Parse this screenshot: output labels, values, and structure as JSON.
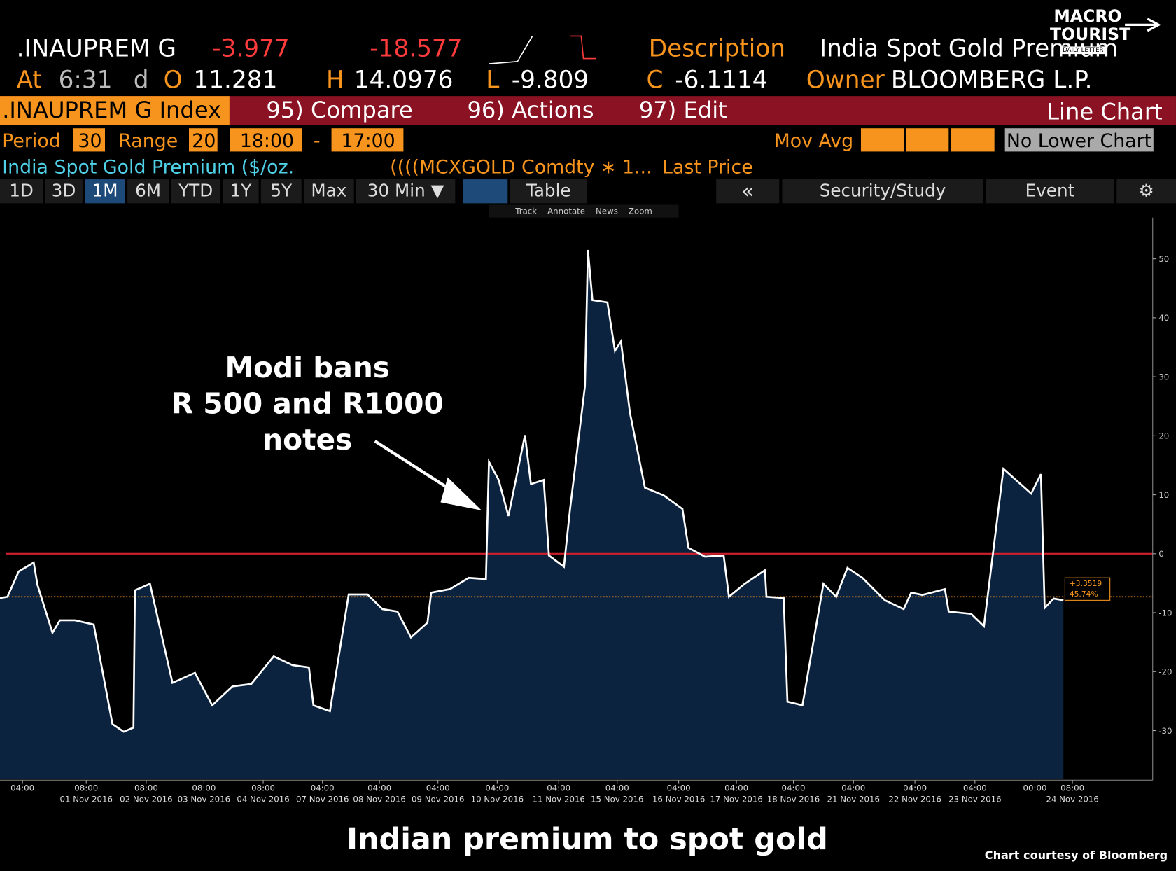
{
  "header": {
    "ticker": ".INAUPREM G",
    "change": "-3.977",
    "change_pct": "-18.577",
    "description_label": "Description",
    "description": "India Spot Gold Premium",
    "at_label": "At",
    "time": "6:31",
    "d_label": "d",
    "open_label": "O",
    "open": "11.281",
    "high_label": "H",
    "high": "14.0976",
    "low_label": "L",
    "low": "-9.809",
    "close_label": "C",
    "close": "-6.1114",
    "owner_label": "Owner",
    "owner": "BLOOMBERG L.P."
  },
  "logo": {
    "line1": "MACRO",
    "line2": "TOURIST",
    "line3": "DAILY LETTER"
  },
  "toolbar": {
    "security": ".INAUPREM G Index",
    "compare": "95) Compare",
    "actions": "96) Actions",
    "edit": "97) Edit",
    "view": "Line Chart"
  },
  "settings": {
    "period_label": "Period",
    "period": "30",
    "range_label": "Range",
    "range": "20",
    "start": "18:00",
    "dash": "-",
    "end": "17:00",
    "mov_avg": "Mov Avg",
    "lower_chart": "No Lower Chart"
  },
  "legend_row": {
    "series": "India Spot Gold Premium ($/oz.",
    "formula": "((((MCXGOLD Comdty ∗ 1...",
    "field": "Last Price"
  },
  "tabs": [
    "1D",
    "3D",
    "1M",
    "6M",
    "YTD",
    "1Y",
    "5Y",
    "Max",
    "30 Min ▼"
  ],
  "tab_table": "Table",
  "tab_back": "«",
  "tab_study": "Security/Study",
  "tab_event": "Event",
  "tools": [
    "Track",
    "Annotate",
    "News",
    "Zoom"
  ],
  "chart_data": {
    "type": "line",
    "color": "#ffffff",
    "fill": "#0c2340",
    "annotation": [
      "Modi bans",
      "R 500 and R1000",
      "notes"
    ],
    "x": [
      0,
      1,
      2.5,
      4.5,
      5,
      7,
      8,
      10,
      12.5,
      15,
      16.5,
      17.8,
      18,
      20,
      23,
      26,
      28.3,
      31,
      33.5,
      36.5,
      39,
      41.2,
      41.8,
      44,
      46.5,
      49,
      51,
      53,
      54.8,
      57,
      57.5,
      60,
      62.5,
      64.8,
      65.2,
      66.5,
      67.8,
      70,
      70.8,
      72.5,
      73.2,
      75.2,
      76,
      78,
      78.4,
      79,
      81,
      82,
      82.8,
      84,
      86,
      88.5,
      91,
      91.8,
      94,
      96.5,
      97.2,
      99.3,
      102,
      102.2,
      104.5,
      105,
      107,
      109.8,
      111.5,
      113,
      115,
      118,
      120.5,
      121.5,
      123,
      126,
      126.5,
      129.5,
      131.2,
      133.8,
      137.5,
      138.8,
      139.3,
      140.5,
      141.8
    ],
    "values": [
      -7.5,
      -7.3,
      -3,
      -1.5,
      -5.3,
      -13.4,
      -11.3,
      -11.3,
      -12,
      -28.9,
      -30.2,
      -29.5,
      -6.2,
      -5.1,
      -21.9,
      -20.2,
      -25.7,
      -22.5,
      -22.1,
      -17.4,
      -18.9,
      -19.3,
      -25.7,
      -26.7,
      -6.9,
      -6.9,
      -9.4,
      -9.8,
      -14.2,
      -11.7,
      -6.6,
      -6,
      -4.1,
      -4.3,
      15.6,
      12.5,
      6.4,
      20.1,
      11.8,
      12.5,
      -0.3,
      -2.2,
      7.4,
      28.4,
      51.5,
      43,
      42.6,
      34.4,
      36,
      23.9,
      11.2,
      9.9,
      7.6,
      1,
      -0.5,
      -0.3,
      -7.3,
      -5.1,
      -2.8,
      -7.3,
      -7.5,
      -25.1,
      -25.7,
      -5.1,
      -7.3,
      -2.4,
      -4.1,
      -7.9,
      -9.4,
      -6.6,
      -7,
      -6,
      -9.8,
      -10.2,
      -12.3,
      14.4,
      10.2,
      13.5,
      -9.2,
      -7.6,
      -7.9
    ],
    "xlim": [
      0,
      153.7
    ],
    "ylim": [
      -38.4,
      57
    ],
    "yticks": [
      50,
      40,
      30,
      20,
      10,
      0,
      -10,
      -20,
      -30
    ],
    "xticks": [
      {
        "value": 3,
        "label": "04:00"
      },
      {
        "value": 11.5,
        "label": "08:00"
      },
      {
        "value": 19.5,
        "label": "08:00"
      },
      {
        "value": 27.2,
        "label": "08:00"
      },
      {
        "value": 35.1,
        "label": "08:00"
      },
      {
        "value": 43,
        "label": "04:00"
      },
      {
        "value": 50.6,
        "label": "04:00"
      },
      {
        "value": 58.4,
        "label": "04:00"
      },
      {
        "value": 66.3,
        "label": "04:00"
      },
      {
        "value": 74.5,
        "label": "04:00"
      },
      {
        "value": 82.3,
        "label": "04:00"
      },
      {
        "value": 90.5,
        "label": "04:00"
      },
      {
        "value": 98.2,
        "label": "04:00"
      },
      {
        "value": 105.8,
        "label": "04:00"
      },
      {
        "value": 113.8,
        "label": "04:00"
      },
      {
        "value": 122,
        "label": "04:00"
      },
      {
        "value": 130,
        "label": "04:00"
      },
      {
        "value": 138,
        "label": "00:00"
      },
      {
        "value": 143,
        "label": "08:00"
      }
    ],
    "xtick_dates": [
      null,
      "01 Nov 2016",
      "02 Nov 2016",
      "03 Nov 2016",
      "04 Nov 2016",
      "07 Nov 2016",
      "08 Nov 2016",
      "09 Nov 2016",
      "10 Nov 2016",
      "11 Nov 2016",
      "15 Nov 2016",
      "16 Nov 2016",
      "17 Nov 2016",
      "18 Nov 2016",
      "21 Nov 2016",
      "22 Nov 2016",
      "23 Nov 2016",
      null,
      "24 Nov 2016"
    ],
    "hlines": [
      {
        "value": 0,
        "color": "#d0202e",
        "style": "solid"
      },
      {
        "value": -7.3,
        "color": "#f7941d",
        "style": "dotted"
      }
    ],
    "last_value_label": "+3.3519",
    "last_pct_label": "45.74%"
  },
  "caption": "Indian premium to spot gold",
  "credit": "Chart courtesy of Bloomberg"
}
